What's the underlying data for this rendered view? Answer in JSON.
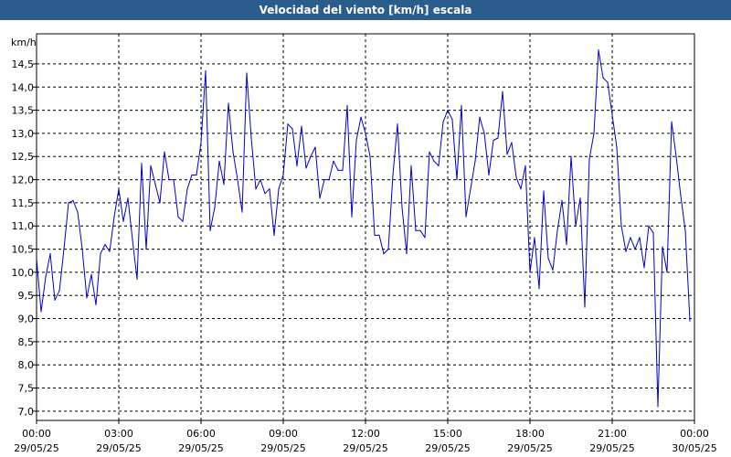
{
  "window": {
    "title": "Velocidad del viento [km/h] escala"
  },
  "colors": {
    "title_bar": "#2a5c8e",
    "line": "#0000cc",
    "grid": "#000000"
  },
  "chart_data": {
    "type": "line",
    "title": "Velocidad del viento [km/h] escala",
    "ylabel": "km/h",
    "xlabel": "",
    "x_range": [
      "29/05/25 00:00",
      "30/05/25 00:00"
    ],
    "ylim": [
      6.8,
      15.15
    ],
    "y_ticks": [
      "7,0",
      "7,5",
      "8,0",
      "8,5",
      "9,0",
      "9,5",
      "10,0",
      "10,5",
      "11,0",
      "11,5",
      "12,0",
      "12,5",
      "13,0",
      "13,5",
      "14,0",
      "14,5"
    ],
    "x_ticks": [
      {
        "time": "00:00",
        "date": "29/05/25"
      },
      {
        "time": "03:00",
        "date": "29/05/25"
      },
      {
        "time": "06:00",
        "date": "29/05/25"
      },
      {
        "time": "09:00",
        "date": "29/05/25"
      },
      {
        "time": "12:00",
        "date": "29/05/25"
      },
      {
        "time": "15:00",
        "date": "29/05/25"
      },
      {
        "time": "18:00",
        "date": "29/05/25"
      },
      {
        "time": "21:00",
        "date": "29/05/25"
      },
      {
        "time": "00:00",
        "date": "30/05/25"
      }
    ],
    "grid": true,
    "series": [
      {
        "values": [
          [
            "29/05/25 00:00",
            10.3
          ],
          [
            "29/05/25 00:10",
            9.15
          ],
          [
            "29/05/25 00:20",
            9.9
          ],
          [
            "29/05/25 00:30",
            10.4
          ],
          [
            "29/05/25 00:40",
            9.4
          ],
          [
            "29/05/25 00:50",
            9.6
          ],
          [
            "29/05/25 01:00",
            10.5
          ],
          [
            "29/05/25 01:10",
            11.5
          ],
          [
            "29/05/25 01:20",
            11.55
          ],
          [
            "29/05/25 01:30",
            11.3
          ],
          [
            "29/05/25 01:40",
            10.5
          ],
          [
            "29/05/25 01:50",
            9.45
          ],
          [
            "29/05/25 02:00",
            9.95
          ],
          [
            "29/05/25 02:10",
            9.3
          ],
          [
            "29/05/25 02:20",
            10.4
          ],
          [
            "29/05/25 02:30",
            10.6
          ],
          [
            "29/05/25 02:40",
            10.45
          ],
          [
            "29/05/25 02:50",
            11.2
          ],
          [
            "29/05/25 03:00",
            11.8
          ],
          [
            "29/05/25 03:10",
            11.1
          ],
          [
            "29/05/25 03:20",
            11.6
          ],
          [
            "29/05/25 03:30",
            10.7
          ],
          [
            "29/05/25 03:40",
            9.85
          ],
          [
            "29/05/25 03:50",
            12.35
          ],
          [
            "29/05/25 04:00",
            10.5
          ],
          [
            "29/05/25 04:10",
            12.3
          ],
          [
            "29/05/25 04:20",
            11.9
          ],
          [
            "29/05/25 04:30",
            11.5
          ],
          [
            "29/05/25 04:40",
            12.6
          ],
          [
            "29/05/25 04:50",
            12.0
          ],
          [
            "29/05/25 05:00",
            12.0
          ],
          [
            "29/05/25 05:10",
            11.2
          ],
          [
            "29/05/25 05:20",
            11.1
          ],
          [
            "29/05/25 05:30",
            11.8
          ],
          [
            "29/05/25 05:40",
            12.1
          ],
          [
            "29/05/25 05:50",
            12.1
          ],
          [
            "29/05/25 06:00",
            12.8
          ],
          [
            "29/05/25 06:10",
            14.35
          ],
          [
            "29/05/25 06:20",
            10.9
          ],
          [
            "29/05/25 06:30",
            11.4
          ],
          [
            "29/05/25 06:40",
            12.4
          ],
          [
            "29/05/25 06:50",
            11.9
          ],
          [
            "29/05/25 07:00",
            13.65
          ],
          [
            "29/05/25 07:10",
            12.6
          ],
          [
            "29/05/25 07:20",
            12.0
          ],
          [
            "29/05/25 07:30",
            11.3
          ],
          [
            "29/05/25 07:40",
            14.3
          ],
          [
            "29/05/25 07:50",
            12.9
          ],
          [
            "29/05/25 08:00",
            11.8
          ],
          [
            "29/05/25 08:10",
            12.0
          ],
          [
            "29/05/25 08:20",
            11.7
          ],
          [
            "29/05/25 08:30",
            11.8
          ],
          [
            "29/05/25 08:40",
            10.8
          ],
          [
            "29/05/25 08:50",
            11.8
          ],
          [
            "29/05/25 09:00",
            12.1
          ],
          [
            "29/05/25 09:10",
            13.2
          ],
          [
            "29/05/25 09:20",
            13.1
          ],
          [
            "29/05/25 09:30",
            12.3
          ],
          [
            "29/05/25 09:40",
            13.15
          ],
          [
            "29/05/25 09:50",
            12.25
          ],
          [
            "29/05/25 10:00",
            12.5
          ],
          [
            "29/05/25 10:10",
            12.7
          ],
          [
            "29/05/25 10:20",
            11.6
          ],
          [
            "29/05/25 10:30",
            12.0
          ],
          [
            "29/05/25 10:40",
            12.0
          ],
          [
            "29/05/25 10:50",
            12.4
          ],
          [
            "29/05/25 11:00",
            12.2
          ],
          [
            "29/05/25 11:10",
            12.2
          ],
          [
            "29/05/25 11:20",
            13.6
          ],
          [
            "29/05/25 11:30",
            11.2
          ],
          [
            "29/05/25 11:40",
            12.85
          ],
          [
            "29/05/25 11:50",
            13.35
          ],
          [
            "29/05/25 12:00",
            13.0
          ],
          [
            "29/05/25 12:10",
            12.5
          ],
          [
            "29/05/25 12:20",
            10.8
          ],
          [
            "29/05/25 12:30",
            10.8
          ],
          [
            "29/05/25 12:40",
            10.4
          ],
          [
            "29/05/25 12:50",
            10.5
          ],
          [
            "29/05/25 13:00",
            12.1
          ],
          [
            "29/05/25 13:10",
            13.2
          ],
          [
            "29/05/25 13:20",
            11.4
          ],
          [
            "29/05/25 13:30",
            10.4
          ],
          [
            "29/05/25 13:40",
            12.3
          ],
          [
            "29/05/25 13:50",
            10.9
          ],
          [
            "29/05/25 14:00",
            10.9
          ],
          [
            "29/05/25 14:10",
            10.75
          ],
          [
            "29/05/25 14:20",
            12.6
          ],
          [
            "29/05/25 14:30",
            12.4
          ],
          [
            "29/05/25 14:40",
            12.3
          ],
          [
            "29/05/25 14:50",
            13.25
          ],
          [
            "29/05/25 15:00",
            13.5
          ],
          [
            "29/05/25 15:10",
            13.3
          ],
          [
            "29/05/25 15:20",
            12.0
          ],
          [
            "29/05/25 15:30",
            13.6
          ],
          [
            "29/05/25 15:40",
            11.2
          ],
          [
            "29/05/25 15:50",
            11.8
          ],
          [
            "29/05/25 16:00",
            12.4
          ],
          [
            "29/05/25 16:10",
            13.35
          ],
          [
            "29/05/25 16:20",
            13.0
          ],
          [
            "29/05/25 16:30",
            12.1
          ],
          [
            "29/05/25 16:40",
            12.85
          ],
          [
            "29/05/25 16:50",
            12.9
          ],
          [
            "29/05/25 17:00",
            13.9
          ],
          [
            "29/05/25 17:10",
            12.55
          ],
          [
            "29/05/25 17:20",
            12.8
          ],
          [
            "29/05/25 17:30",
            12.05
          ],
          [
            "29/05/25 17:40",
            11.8
          ],
          [
            "29/05/25 17:50",
            12.3
          ],
          [
            "29/05/25 18:00",
            10.0
          ],
          [
            "29/05/25 18:10",
            10.75
          ],
          [
            "29/05/25 18:20",
            9.65
          ],
          [
            "29/05/25 18:30",
            11.75
          ],
          [
            "29/05/25 18:40",
            10.3
          ],
          [
            "29/05/25 18:50",
            10.05
          ],
          [
            "29/05/25 19:00",
            10.9
          ],
          [
            "29/05/25 19:10",
            11.55
          ],
          [
            "29/05/25 19:20",
            10.6
          ],
          [
            "29/05/25 19:30",
            12.5
          ],
          [
            "29/05/25 19:40",
            11.0
          ],
          [
            "29/05/25 19:50",
            11.6
          ],
          [
            "29/05/25 20:00",
            9.25
          ],
          [
            "29/05/25 20:10",
            12.45
          ],
          [
            "29/05/25 20:20",
            13.0
          ],
          [
            "29/05/25 20:30",
            14.8
          ],
          [
            "29/05/25 20:40",
            14.2
          ],
          [
            "29/05/25 20:50",
            14.1
          ],
          [
            "29/05/25 21:00",
            13.4
          ],
          [
            "29/05/25 21:10",
            12.7
          ],
          [
            "29/05/25 21:20",
            11.0
          ],
          [
            "29/05/25 21:30",
            10.45
          ],
          [
            "29/05/25 21:40",
            10.75
          ],
          [
            "29/05/25 21:50",
            10.5
          ],
          [
            "29/05/25 22:00",
            10.75
          ],
          [
            "29/05/25 22:10",
            10.1
          ],
          [
            "29/05/25 22:20",
            11.0
          ],
          [
            "29/05/25 22:30",
            10.85
          ],
          [
            "29/05/25 22:40",
            7.1
          ],
          [
            "29/05/25 22:50",
            10.55
          ],
          [
            "29/05/25 23:00",
            10.0
          ],
          [
            "29/05/25 23:10",
            13.25
          ],
          [
            "29/05/25 23:20",
            12.5
          ],
          [
            "29/05/25 23:30",
            11.65
          ],
          [
            "29/05/25 23:40",
            10.9
          ],
          [
            "29/05/25 23:50",
            8.95
          ]
        ]
      }
    ]
  }
}
